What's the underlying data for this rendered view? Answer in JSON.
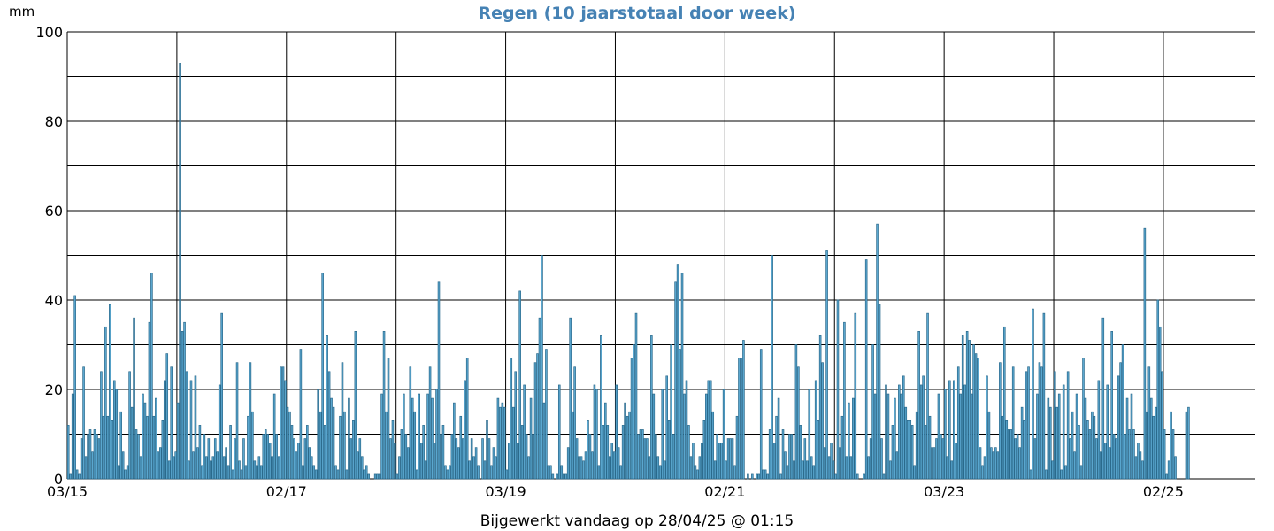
{
  "chart_data": {
    "type": "bar",
    "title": "Regen (10 jaarstotaal door week)",
    "ylabel": "mm",
    "ylim": [
      0,
      100
    ],
    "yticks": [
      0,
      20,
      40,
      60,
      80,
      100
    ],
    "x_tick_labels": [
      "03/15",
      "02/17",
      "03/19",
      "02/21",
      "03/23",
      "02/25"
    ],
    "x_tick_week_index": [
      0,
      100,
      200,
      300,
      400,
      500
    ],
    "x_range_weeks": [
      0,
      542
    ],
    "grid": true,
    "colors": {
      "bar_fill": "#5aa7cf",
      "bar_edge": "#2b6a8c",
      "title": "#4682b4"
    },
    "series": [
      {
        "values": [
          12,
          1,
          19,
          41,
          2,
          1,
          9,
          25,
          5,
          10,
          11,
          6,
          11,
          10,
          9,
          24,
          14,
          34,
          14,
          39,
          13,
          22,
          20,
          3,
          15,
          6,
          2,
          3,
          24,
          16,
          36,
          11,
          10,
          5,
          19,
          17,
          14,
          35,
          46,
          14,
          18,
          6,
          7,
          13,
          22,
          28,
          4,
          25,
          5,
          6,
          17,
          93,
          33,
          35,
          24,
          4,
          22,
          6,
          23,
          7,
          12,
          3,
          10,
          5,
          9,
          4,
          5,
          9,
          6,
          21,
          37,
          5,
          7,
          3,
          12,
          2,
          9,
          26,
          4,
          2,
          9,
          3,
          14,
          26,
          15,
          4,
          3,
          5,
          3,
          10,
          11,
          10,
          8,
          5,
          19,
          10,
          5,
          25,
          25,
          22,
          16,
          15,
          12,
          9,
          6,
          8,
          29,
          3,
          9,
          12,
          7,
          5,
          3,
          2,
          20,
          15,
          46,
          12,
          32,
          24,
          18,
          16,
          3,
          2,
          14,
          26,
          15,
          2,
          18,
          9,
          13,
          33,
          6,
          9,
          5,
          2,
          3,
          1,
          0,
          0,
          1,
          1,
          1,
          19,
          33,
          15,
          27,
          9,
          13,
          8,
          1,
          5,
          11,
          19,
          10,
          7,
          25,
          18,
          15,
          2,
          19,
          8,
          12,
          4,
          19,
          25,
          18,
          8,
          20,
          44,
          10,
          12,
          3,
          2,
          3,
          10,
          17,
          9,
          7,
          14,
          9,
          22,
          27,
          4,
          9,
          5,
          7,
          3,
          0,
          9,
          4,
          13,
          9,
          3,
          7,
          5,
          18,
          16,
          17,
          16,
          2,
          8,
          27,
          16,
          24,
          8,
          42,
          12,
          21,
          10,
          5,
          18,
          10,
          26,
          28,
          36,
          50,
          17,
          29,
          3,
          3,
          1,
          0,
          1,
          21,
          3,
          1,
          1,
          7,
          36,
          15,
          25,
          9,
          5,
          5,
          4,
          6,
          13,
          10,
          6,
          21,
          20,
          3,
          32,
          12,
          17,
          12,
          5,
          8,
          6,
          21,
          7,
          3,
          12,
          17,
          14,
          15,
          27,
          30,
          37,
          10,
          11,
          11,
          9,
          9,
          5,
          32,
          19,
          10,
          5,
          3,
          20,
          4,
          23,
          13,
          30,
          10,
          44,
          48,
          29,
          46,
          19,
          22,
          12,
          5,
          8,
          3,
          2,
          5,
          8,
          13,
          19,
          22,
          22,
          15,
          4,
          10,
          8,
          8,
          20,
          4,
          9,
          9,
          9,
          3,
          14,
          27,
          27,
          31,
          0,
          1,
          0,
          1,
          0,
          1,
          1,
          29,
          2,
          2,
          1,
          11,
          50,
          8,
          14,
          18,
          1,
          11,
          6,
          3,
          10,
          10,
          4,
          30,
          25,
          12,
          4,
          9,
          4,
          20,
          5,
          3,
          22,
          13,
          32,
          26,
          7,
          51,
          5,
          8,
          4,
          1,
          40,
          7,
          14,
          35,
          5,
          17,
          5,
          18,
          37,
          1,
          0,
          0,
          1,
          49,
          5,
          9,
          30,
          19,
          57,
          39,
          9,
          1,
          21,
          19,
          4,
          12,
          18,
          6,
          21,
          19,
          23,
          16,
          13,
          13,
          12,
          3,
          15,
          33,
          21,
          23,
          12,
          37,
          14,
          7,
          7,
          9,
          19,
          10,
          9,
          20,
          5,
          22,
          4,
          22,
          8,
          25,
          19,
          32,
          21,
          33,
          31,
          19,
          30,
          28,
          27,
          7,
          3,
          5,
          23,
          15,
          7,
          6,
          7,
          6,
          26,
          14,
          34,
          13,
          11,
          11,
          25,
          9,
          10,
          7,
          16,
          13,
          24,
          25,
          2,
          38,
          9,
          19,
          26,
          25,
          37,
          2,
          18,
          16,
          4,
          24,
          16,
          19,
          2,
          21,
          3,
          24,
          9,
          15,
          6,
          19,
          12,
          3,
          27,
          18,
          13,
          11,
          15,
          14,
          9,
          22,
          6,
          36,
          8,
          21,
          7,
          33,
          10,
          9,
          23,
          26,
          30,
          10,
          18,
          11,
          19,
          11,
          5,
          8,
          6,
          4,
          56,
          15,
          25,
          18,
          14,
          16,
          40,
          34,
          24,
          11,
          1,
          4,
          15,
          11,
          5,
          0,
          0,
          0,
          0,
          15,
          16
        ]
      }
    ],
    "footer": "Bijgewerkt vandaag op 28/04/25 @ 01:15"
  }
}
